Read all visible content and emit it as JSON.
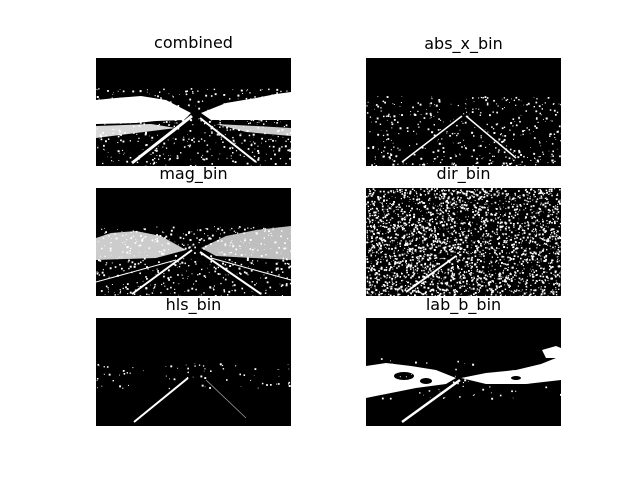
{
  "panels": [
    {
      "title": "combined"
    },
    {
      "title": "abs_x_bin"
    },
    {
      "title": "mag_bin"
    },
    {
      "title": "dir_bin"
    },
    {
      "title": "hls_bin"
    },
    {
      "title": "lab_b_bin"
    }
  ],
  "colors": {
    "foreground": "#ffffff",
    "background": "#000000"
  }
}
